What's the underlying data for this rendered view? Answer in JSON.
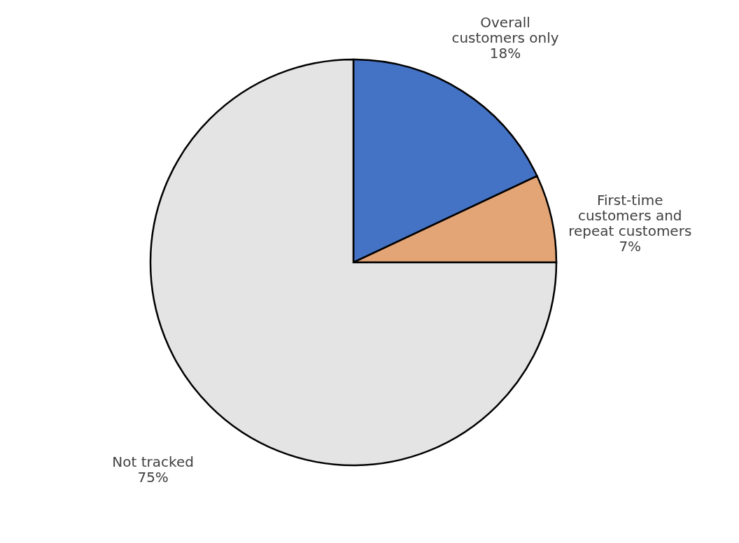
{
  "chart_data": {
    "type": "pie",
    "categories": [
      "Overall customers only",
      "First-time customers and repeat customers",
      "Not tracked"
    ],
    "values": [
      18,
      7,
      75
    ],
    "value_labels": [
      "18%",
      "7%",
      "75%"
    ],
    "colors": [
      "#4472c4",
      "#e3a576",
      "#e4e4e4"
    ],
    "legend": false
  }
}
